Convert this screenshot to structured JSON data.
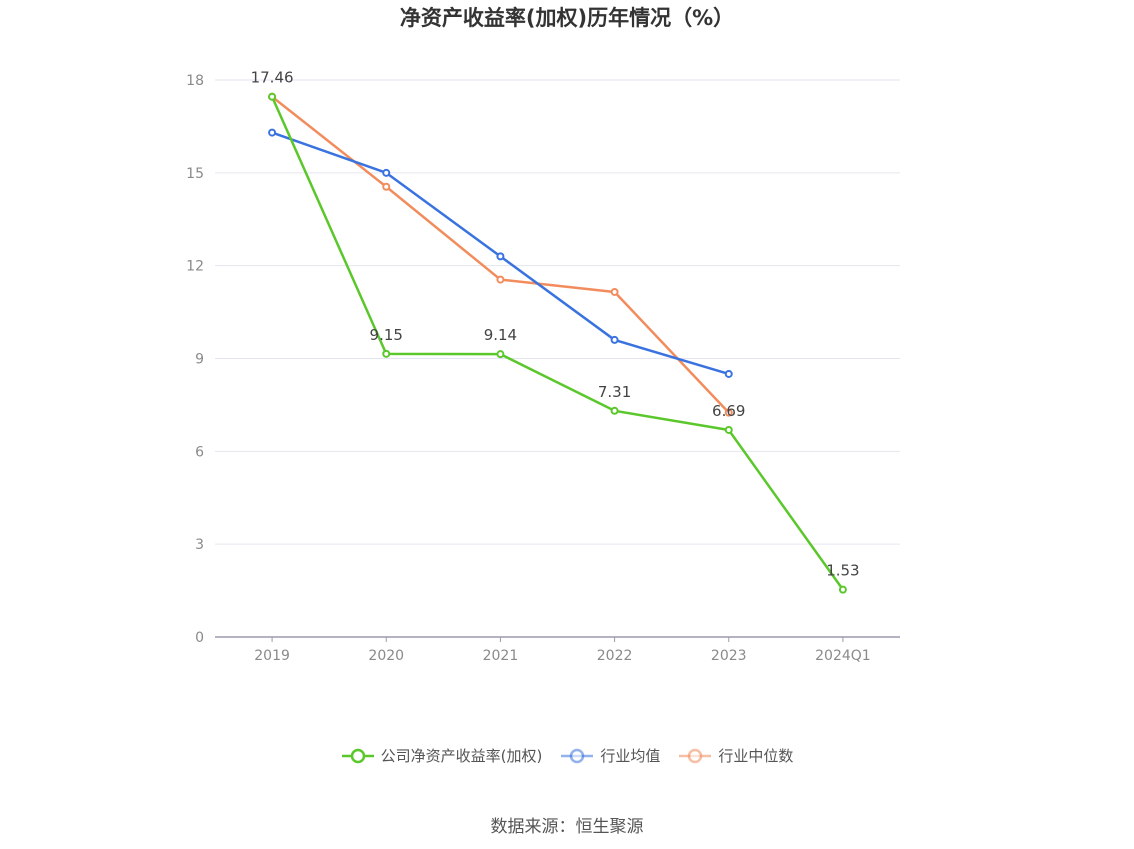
{
  "title": "净资产收益率(加权)历年情况（%）",
  "source": "数据来源：恒生聚源",
  "chart_data": {
    "type": "line",
    "categories": [
      "2019",
      "2020",
      "2021",
      "2022",
      "2023",
      "2024Q1"
    ],
    "ylim": [
      0,
      18
    ],
    "yticks": [
      0,
      3,
      6,
      9,
      12,
      15,
      18
    ],
    "grid": true,
    "legend_position": "bottom",
    "series": [
      {
        "name": "公司净资产收益率(加权)",
        "color": "#5ac72a",
        "values": [
          17.46,
          9.15,
          9.14,
          7.31,
          6.69,
          1.53
        ],
        "labels": [
          "17.46",
          "9.15",
          "9.14",
          "7.31",
          "6.69",
          "1.53"
        ]
      },
      {
        "name": "行业均值",
        "color": "#3a73e0",
        "values": [
          16.3,
          15.0,
          12.3,
          9.6,
          8.5,
          null
        ]
      },
      {
        "name": "行业中位数",
        "color": "#f28c5c",
        "values": [
          17.46,
          14.55,
          11.55,
          11.15,
          7.25,
          null
        ]
      }
    ]
  }
}
